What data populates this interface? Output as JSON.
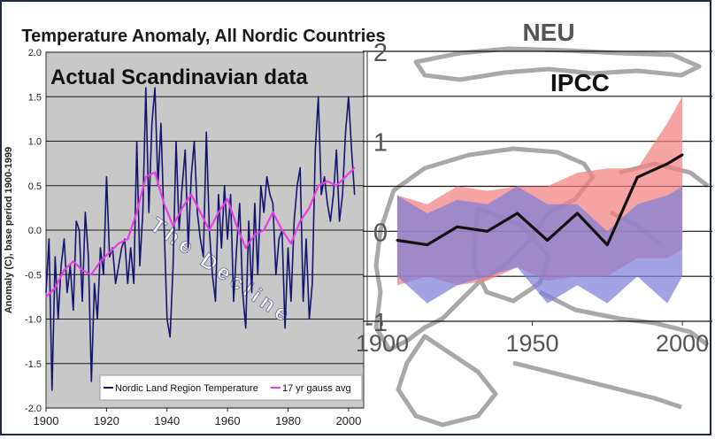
{
  "chart_data": [
    {
      "type": "line",
      "title": "Temperature Anomaly, All Nordic Countries",
      "overlay_label": "Actual Scandinavian data",
      "annotation": "The Decline",
      "xlabel": "",
      "ylabel": "Anomaly (C), base period 1900-1999",
      "xlim": [
        1900,
        2005
      ],
      "ylim": [
        -2.0,
        2.0
      ],
      "x_ticks": [
        "1900",
        "1920",
        "1940",
        "1960",
        "1980",
        "2000"
      ],
      "y_ticks": [
        "2.0",
        "1.5",
        "1.0",
        "0.5",
        "0.0",
        "-0.5",
        "-1.0",
        "-1.5",
        "-2.0"
      ],
      "legend": [
        "Nordic Land Region Temperature",
        "17 yr gauss avg"
      ],
      "colors": {
        "annual": "#14146e",
        "smooth": "#e83ce8",
        "background": "#c8c8c8"
      },
      "series": [
        {
          "name": "Nordic Land Region Temperature",
          "x": [
            1900,
            1901,
            1902,
            1903,
            1904,
            1905,
            1906,
            1907,
            1908,
            1909,
            1910,
            1911,
            1912,
            1913,
            1914,
            1915,
            1916,
            1917,
            1918,
            1919,
            1920,
            1921,
            1922,
            1923,
            1924,
            1925,
            1926,
            1927,
            1928,
            1929,
            1930,
            1931,
            1932,
            1933,
            1934,
            1935,
            1936,
            1937,
            1938,
            1939,
            1940,
            1941,
            1942,
            1943,
            1944,
            1945,
            1946,
            1947,
            1948,
            1949,
            1950,
            1951,
            1952,
            1953,
            1954,
            1955,
            1956,
            1957,
            1958,
            1959,
            1960,
            1961,
            1962,
            1963,
            1964,
            1965,
            1966,
            1967,
            1968,
            1969,
            1970,
            1971,
            1972,
            1973,
            1974,
            1975,
            1976,
            1977,
            1978,
            1979,
            1980,
            1981,
            1982,
            1983,
            1984,
            1985,
            1986,
            1987,
            1988,
            1989,
            1990,
            1991,
            1992,
            1993,
            1994,
            1995,
            1996,
            1997,
            1998,
            1999,
            2000,
            2001,
            2002
          ],
          "values": [
            -0.7,
            -0.1,
            -1.8,
            -0.3,
            -1.0,
            -0.4,
            -0.1,
            -0.7,
            -0.4,
            -0.9,
            0.1,
            0.0,
            -0.8,
            0.2,
            -0.3,
            -1.7,
            -0.6,
            -1.0,
            -0.2,
            -0.5,
            0.6,
            -0.3,
            -0.2,
            -0.6,
            -0.4,
            -0.2,
            -0.1,
            -0.6,
            -0.2,
            -0.6,
            1.0,
            -0.4,
            0.2,
            1.6,
            0.2,
            1.2,
            1.6,
            0.5,
            1.2,
            0.1,
            -1.0,
            -1.2,
            -0.4,
            1.0,
            0.0,
            0.5,
            0.9,
            -0.2,
            0.6,
            1.0,
            0.2,
            -0.1,
            -0.3,
            1.1,
            0.0,
            -0.5,
            -0.8,
            0.4,
            -0.2,
            0.5,
            -0.1,
            0.4,
            -0.8,
            -0.2,
            0.3,
            -0.7,
            -1.1,
            0.1,
            -0.7,
            0.3,
            -0.5,
            0.5,
            0.2,
            0.6,
            0.4,
            0.3,
            -0.5,
            -0.1,
            0.0,
            -1.1,
            -0.2,
            -0.8,
            0.1,
            0.5,
            0.7,
            -0.8,
            -0.1,
            -1.0,
            -0.6,
            0.9,
            1.5,
            0.4,
            0.6,
            0.3,
            0.1,
            0.4,
            0.9,
            0.1,
            0.4,
            1.1,
            1.5,
            0.9,
            0.4
          ]
        },
        {
          "name": "17 yr gauss avg",
          "x": [
            1900,
            1903,
            1906,
            1909,
            1912,
            1915,
            1918,
            1921,
            1924,
            1927,
            1930,
            1933,
            1936,
            1939,
            1942,
            1945,
            1948,
            1951,
            1954,
            1957,
            1960,
            1963,
            1966,
            1969,
            1972,
            1975,
            1978,
            1981,
            1984,
            1987,
            1990,
            1993,
            1996,
            1999,
            2002
          ],
          "values": [
            -0.75,
            -0.65,
            -0.45,
            -0.35,
            -0.45,
            -0.5,
            -0.35,
            -0.25,
            -0.15,
            -0.1,
            0.2,
            0.6,
            0.65,
            0.3,
            0.05,
            0.25,
            0.4,
            0.2,
            0.0,
            0.2,
            0.35,
            0.05,
            -0.2,
            -0.05,
            0.0,
            0.2,
            0.0,
            -0.15,
            0.1,
            0.25,
            0.5,
            0.55,
            0.5,
            0.6,
            0.7
          ]
        }
      ]
    },
    {
      "type": "area",
      "title": "NEU",
      "overlay_label": "IPCC",
      "xlabel": "",
      "ylabel": "",
      "xlim": [
        1895,
        2010
      ],
      "ylim": [
        -1,
        2
      ],
      "x_ticks": [
        "1900",
        "1950",
        "2000"
      ],
      "y_ticks": [
        "2",
        "1",
        "0",
        "-1"
      ],
      "colors": {
        "observed": "#111111",
        "red_band": "#f28080",
        "blue_band": "#8080d8",
        "overlap": "#a070c0"
      },
      "series": [
        {
          "name": "observed",
          "x": [
            1905,
            1915,
            1925,
            1935,
            1945,
            1955,
            1965,
            1975,
            1985,
            1995,
            2000
          ],
          "values": [
            -0.1,
            -0.15,
            0.05,
            0.0,
            0.2,
            -0.1,
            0.2,
            -0.15,
            0.6,
            0.75,
            0.85
          ]
        },
        {
          "name": "red band upper",
          "x": [
            1905,
            1915,
            1925,
            1935,
            1945,
            1955,
            1965,
            1975,
            1985,
            1995,
            2000
          ],
          "values": [
            0.4,
            0.3,
            0.5,
            0.45,
            0.5,
            0.5,
            0.65,
            0.7,
            0.7,
            1.2,
            1.5
          ]
        },
        {
          "name": "red band lower",
          "x": [
            1905,
            1915,
            1925,
            1935,
            1945,
            1955,
            1965,
            1975,
            1985,
            1995,
            2000
          ],
          "values": [
            -0.6,
            -0.5,
            -0.6,
            -0.55,
            -0.4,
            -0.55,
            -0.5,
            -0.5,
            -0.3,
            -0.3,
            -0.2
          ]
        },
        {
          "name": "blue band upper",
          "x": [
            1905,
            1915,
            1925,
            1935,
            1945,
            1955,
            1965,
            1975,
            1985,
            1995,
            2000
          ],
          "values": [
            0.4,
            0.2,
            0.35,
            0.3,
            0.5,
            0.3,
            0.3,
            0.0,
            0.3,
            0.4,
            0.5
          ]
        },
        {
          "name": "blue band lower",
          "x": [
            1905,
            1915,
            1925,
            1935,
            1945,
            1955,
            1965,
            1975,
            1985,
            1995,
            2000
          ],
          "values": [
            -0.5,
            -0.8,
            -0.6,
            -0.5,
            -0.4,
            -0.8,
            -0.6,
            -0.8,
            -0.5,
            -0.8,
            -0.5
          ]
        }
      ]
    }
  ]
}
